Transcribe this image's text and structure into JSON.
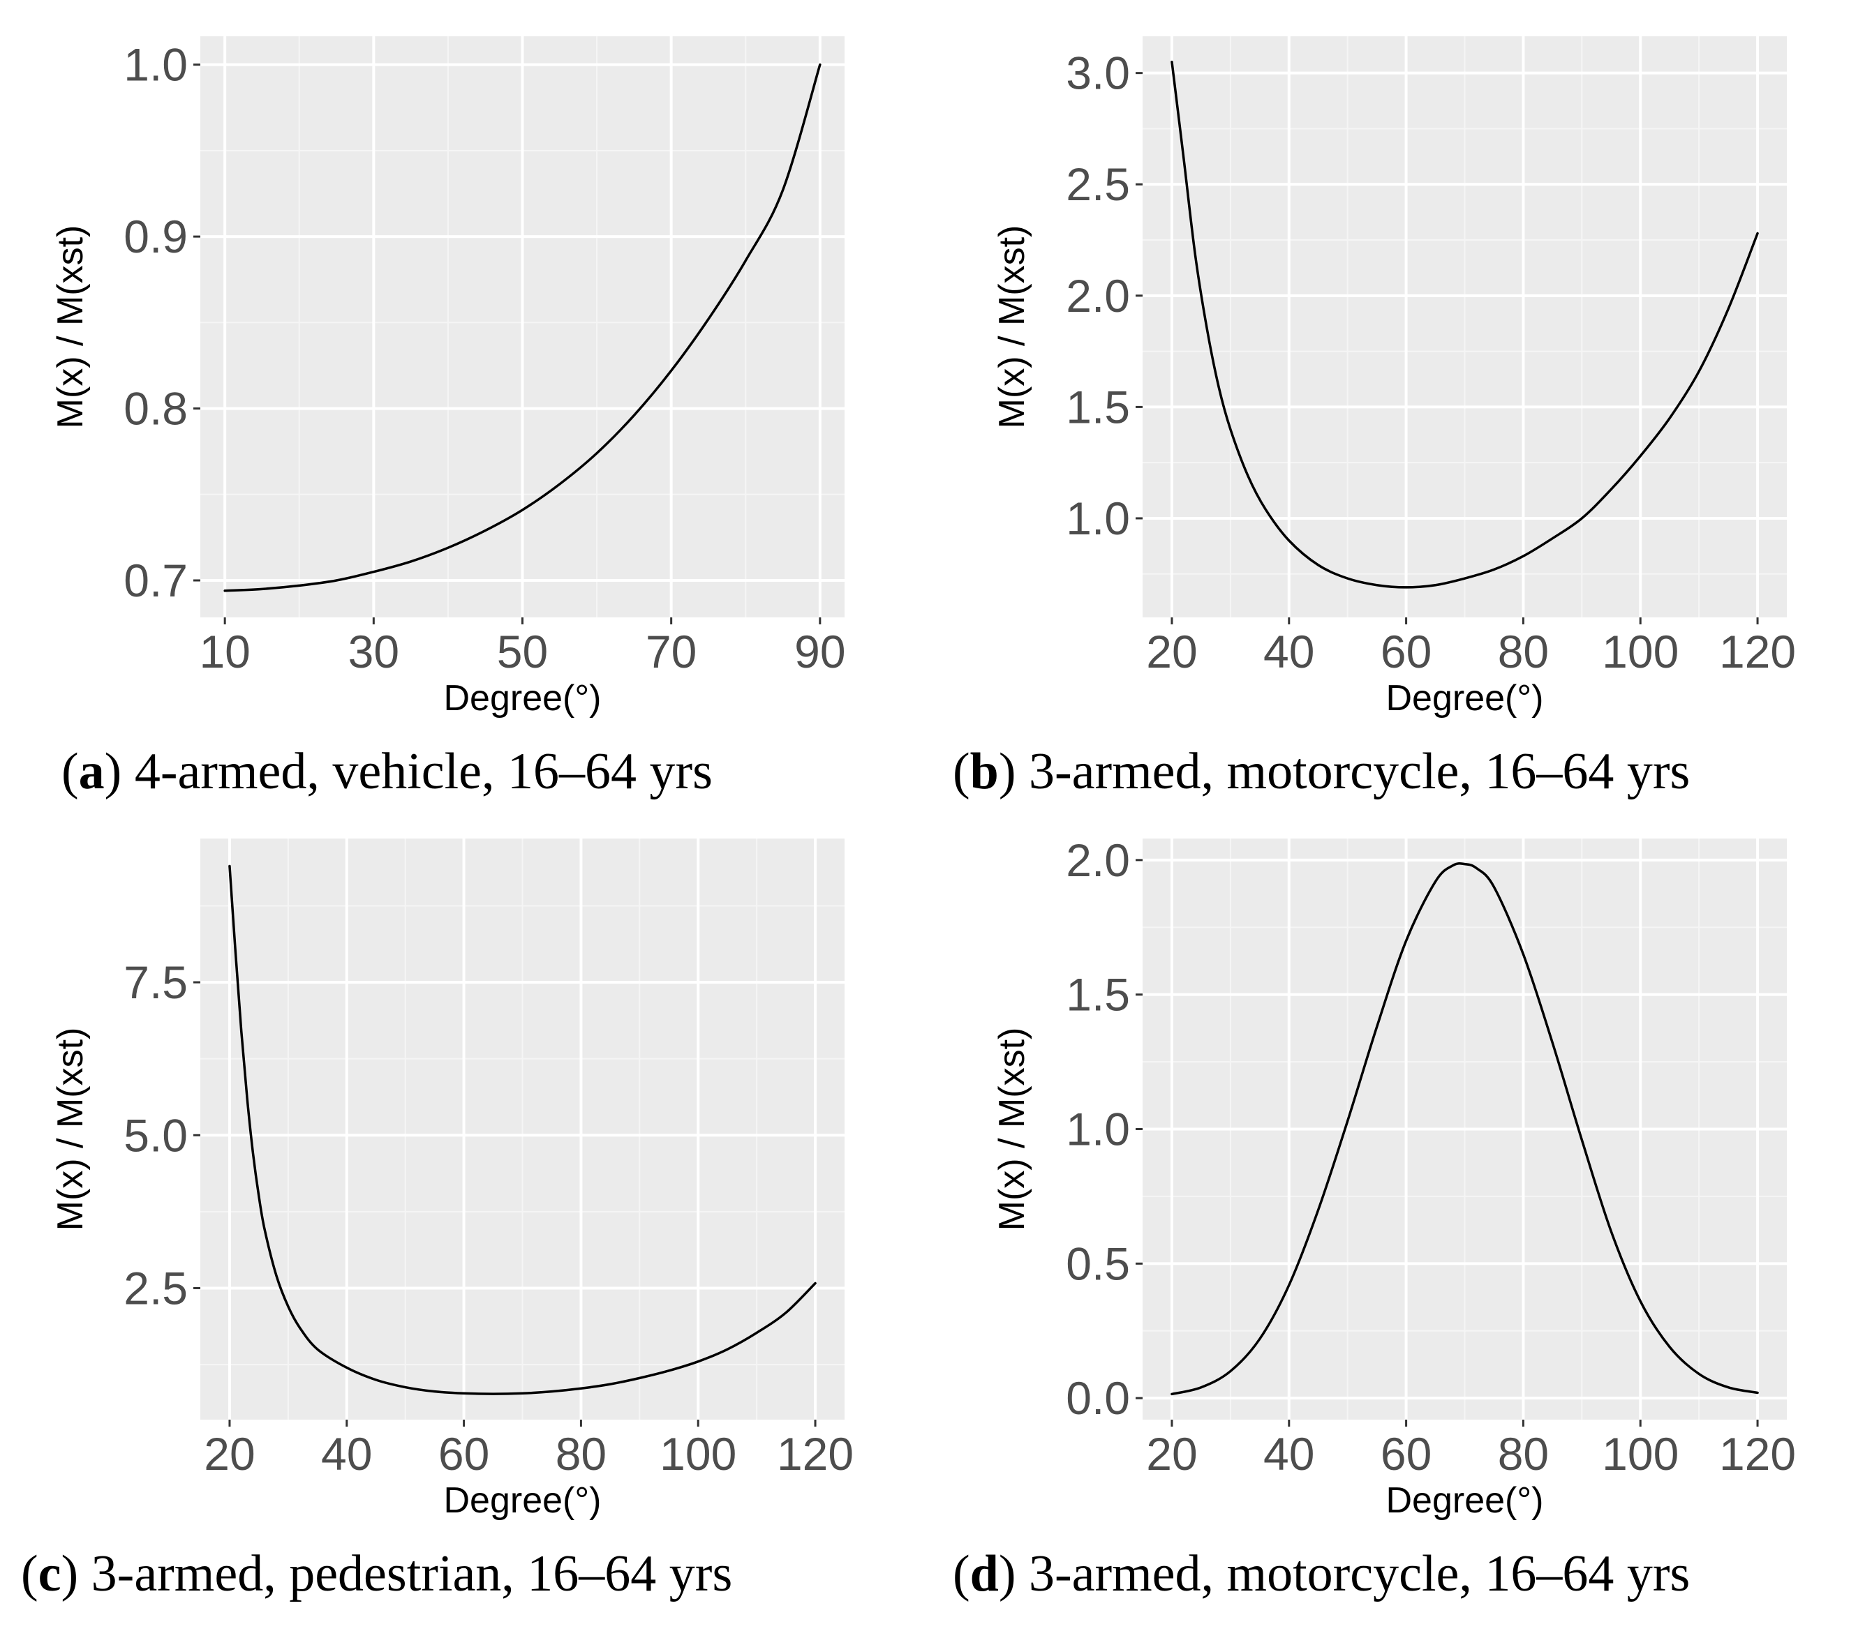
{
  "colors": {
    "panel_background": "#ebebeb",
    "grid_major": "#ffffff",
    "grid_minor": "#f5f5f5",
    "line": "#000000",
    "tick_label": "#4d4d4d",
    "axis_title": "#000000"
  },
  "chart_data": [
    {
      "type": "line",
      "panel": "a",
      "caption_letter": "a",
      "caption_text": "4-armed, vehicle, 16–64 yrs",
      "xlabel": "Degree(°)",
      "ylabel": "M(x) / M(xst)",
      "xlim": [
        6.7,
        93.3
      ],
      "ylim": [
        0.6785,
        1.0165
      ],
      "xticks": [
        10,
        30,
        50,
        70,
        90
      ],
      "xtick_labels": [
        "10",
        "30",
        "50",
        "70",
        "90"
      ],
      "yticks": [
        0.7,
        0.8,
        0.9,
        1.0
      ],
      "ytick_labels": [
        "0.7",
        "0.8",
        "0.9",
        "1.0"
      ],
      "grid": true,
      "series": [
        {
          "name": "M(x) / M(xst)",
          "x": [
            10,
            15,
            20,
            25,
            30,
            35,
            40,
            45,
            50,
            55,
            60,
            65,
            70,
            75,
            80,
            85,
            90
          ],
          "y": [
            0.694,
            0.695,
            0.697,
            0.7,
            0.705,
            0.711,
            0.719,
            0.729,
            0.741,
            0.756,
            0.774,
            0.796,
            0.822,
            0.852,
            0.886,
            0.927,
            1.0
          ]
        }
      ]
    },
    {
      "type": "line",
      "panel": "b",
      "caption_letter": "b",
      "caption_text": "3-armed, motorcycle, 16–64 yrs",
      "xlabel": "Degree(°)",
      "ylabel": "M(x) / M(xst)",
      "xlim": [
        15,
        125
      ],
      "ylim": [
        0.555,
        3.165
      ],
      "xticks": [
        20,
        40,
        60,
        80,
        100,
        120
      ],
      "xtick_labels": [
        "20",
        "40",
        "60",
        "80",
        "100",
        "120"
      ],
      "yticks": [
        1.0,
        1.5,
        2.0,
        2.5,
        3.0
      ],
      "ytick_labels": [
        "1.0",
        "1.5",
        "2.0",
        "2.5",
        "3.0"
      ],
      "grid": true,
      "series": [
        {
          "name": "M(x) / M(xst)",
          "x": [
            20,
            22,
            24,
            26,
            28,
            30,
            33,
            36,
            40,
            45,
            50,
            55,
            60,
            65,
            70,
            75,
            80,
            85,
            90,
            95,
            100,
            105,
            110,
            115,
            120
          ],
          "y": [
            3.05,
            2.62,
            2.18,
            1.85,
            1.59,
            1.4,
            1.19,
            1.04,
            0.9,
            0.79,
            0.73,
            0.7,
            0.69,
            0.7,
            0.73,
            0.77,
            0.83,
            0.91,
            1.0,
            1.13,
            1.28,
            1.45,
            1.66,
            1.94,
            2.28
          ]
        }
      ]
    },
    {
      "type": "line",
      "panel": "c",
      "caption_letter": "c",
      "caption_text": "3-armed, pedestrian, 16–64 yrs",
      "xlabel": "Degree(°)",
      "ylabel": "M(x) / M(xst)",
      "xlim": [
        15,
        125
      ],
      "ylim": [
        0.35,
        9.85
      ],
      "xticks": [
        20,
        40,
        60,
        80,
        100,
        120
      ],
      "xtick_labels": [
        "20",
        "40",
        "60",
        "80",
        "100",
        "120"
      ],
      "yticks": [
        2.5,
        5.0,
        7.5
      ],
      "ytick_labels": [
        "2.5",
        "5.0",
        "7.5"
      ],
      "grid": true,
      "series": [
        {
          "name": "M(x) / M(xst)",
          "x": [
            20,
            21,
            22,
            23,
            24,
            25,
            26,
            28,
            30,
            32,
            35,
            40,
            45,
            50,
            55,
            60,
            65,
            70,
            75,
            80,
            85,
            90,
            95,
            100,
            105,
            110,
            115,
            120
          ],
          "y": [
            9.4,
            8.0,
            6.7,
            5.6,
            4.7,
            4.0,
            3.45,
            2.7,
            2.2,
            1.85,
            1.5,
            1.2,
            1.0,
            0.88,
            0.81,
            0.78,
            0.77,
            0.78,
            0.81,
            0.86,
            0.93,
            1.03,
            1.15,
            1.3,
            1.5,
            1.77,
            2.1,
            2.58
          ]
        }
      ]
    },
    {
      "type": "line",
      "panel": "d",
      "caption_letter": "d",
      "caption_text": "3-armed, motorcycle, 16–64 yrs",
      "xlabel": "Degree(°)",
      "ylabel": "M(x) / M(xst)",
      "xlim": [
        15,
        125
      ],
      "ylim": [
        -0.08,
        2.08
      ],
      "xticks": [
        20,
        40,
        60,
        80,
        100,
        120
      ],
      "xtick_labels": [
        "20",
        "40",
        "60",
        "80",
        "100",
        "120"
      ],
      "yticks": [
        0.0,
        0.5,
        1.0,
        1.5,
        2.0
      ],
      "ytick_labels": [
        "0.0",
        "0.5",
        "1.0",
        "1.5",
        "2.0"
      ],
      "grid": true,
      "series": [
        {
          "name": "M(x) / M(xst)",
          "x": [
            20,
            25,
            30,
            35,
            40,
            45,
            50,
            55,
            60,
            65,
            68,
            70,
            72,
            75,
            80,
            85,
            90,
            95,
            100,
            105,
            110,
            115,
            120
          ],
          "y": [
            0.015,
            0.04,
            0.1,
            0.22,
            0.42,
            0.7,
            1.03,
            1.38,
            1.7,
            1.92,
            1.98,
            1.985,
            1.97,
            1.9,
            1.65,
            1.32,
            0.96,
            0.62,
            0.36,
            0.19,
            0.09,
            0.04,
            0.02
          ]
        }
      ]
    }
  ]
}
